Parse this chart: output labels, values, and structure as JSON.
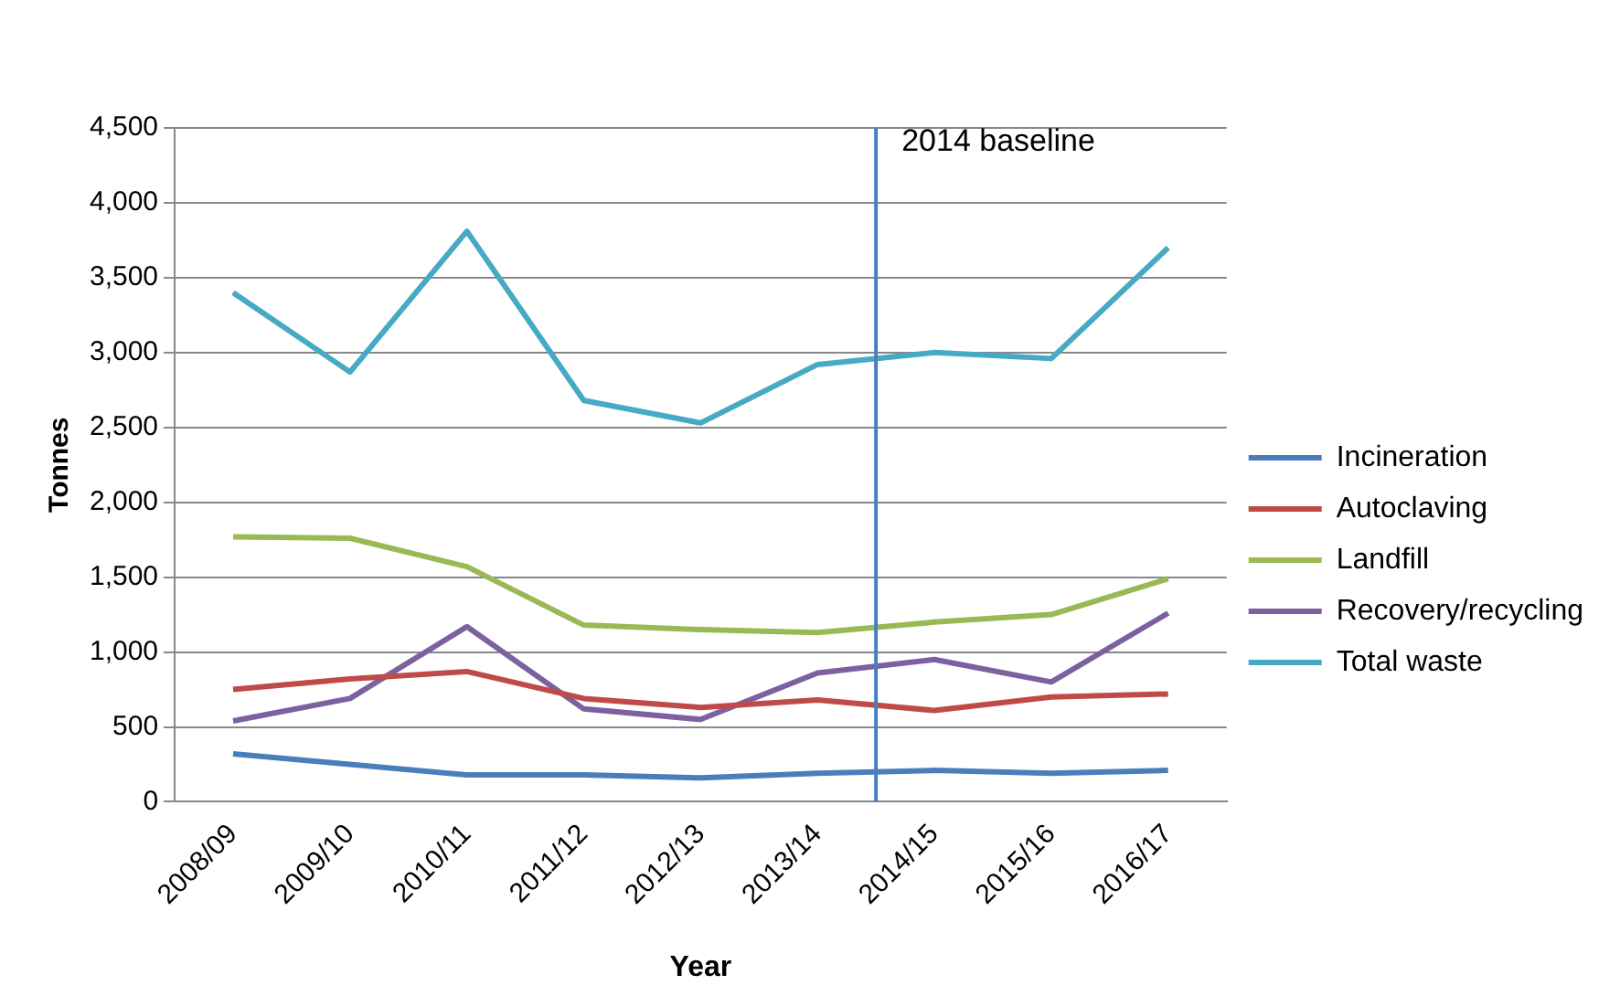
{
  "chart_data": {
    "type": "line",
    "xlabel": "Year",
    "ylabel": "Tonnes",
    "categories": [
      "2008/09",
      "2009/10",
      "2010/11",
      "2011/12",
      "2012/13",
      "2013/14",
      "2014/15",
      "2015/16",
      "2016/17"
    ],
    "series": [
      {
        "name": "Incineration",
        "color": "#4a7ebb",
        "values": [
          320,
          250,
          180,
          180,
          160,
          190,
          210,
          190,
          210
        ]
      },
      {
        "name": "Autoclaving",
        "color": "#be4b48",
        "values": [
          750,
          820,
          870,
          690,
          630,
          680,
          610,
          700,
          720
        ]
      },
      {
        "name": "Landfill",
        "color": "#98b954",
        "values": [
          1770,
          1760,
          1570,
          1180,
          1150,
          1130,
          1200,
          1250,
          1490
        ]
      },
      {
        "name": "Recovery/recycling",
        "color": "#7d60a0",
        "values": [
          540,
          690,
          1170,
          620,
          550,
          860,
          950,
          800,
          1260
        ]
      },
      {
        "name": "Total waste",
        "color": "#46aac5",
        "values": [
          3400,
          2870,
          3810,
          2680,
          2530,
          2920,
          3000,
          2960,
          3700
        ]
      }
    ],
    "ylim": [
      0,
      4500
    ],
    "yticks": [
      0,
      500,
      {
        "value": 1000,
        "label": "1,000"
      },
      {
        "value": 1500,
        "label": "1,500"
      },
      {
        "value": 2000,
        "label": "2,000"
      },
      {
        "value": 2500,
        "label": "2,500"
      },
      {
        "value": 3000,
        "label": "3,000"
      },
      {
        "value": 3500,
        "label": "3,500"
      },
      {
        "value": 4000,
        "label": "4,000"
      },
      {
        "value": 4500,
        "label": "4,500"
      }
    ],
    "grid": "y",
    "legend": "right",
    "marker": "none",
    "line_style": "solid",
    "ref_lines": [
      {
        "axis": "x",
        "value": "2014/15",
        "label": "2014 baseline",
        "color": "#4a7ebb"
      }
    ]
  }
}
